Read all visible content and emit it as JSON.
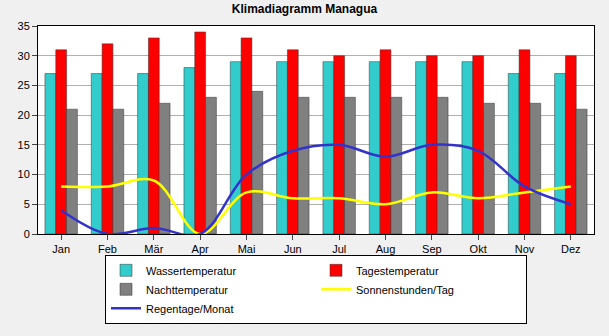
{
  "chart_data": {
    "type": "bar",
    "title": "Klimadiagramm Managua",
    "categories": [
      "Jan",
      "Feb",
      "Mär",
      "Apr",
      "Mai",
      "Jun",
      "Jul",
      "Aug",
      "Sep",
      "Okt",
      "Nov",
      "Dez"
    ],
    "series": [
      {
        "name": "Wassertemperatur",
        "type": "bar",
        "color": "#33cccc",
        "values": [
          27,
          27,
          27,
          28,
          29,
          29,
          29,
          29,
          29,
          29,
          27,
          27
        ]
      },
      {
        "name": "Tagestemperatur",
        "type": "bar",
        "color": "#ff0000",
        "values": [
          31,
          32,
          33,
          34,
          33,
          31,
          30,
          31,
          30,
          30,
          31,
          30
        ]
      },
      {
        "name": "Nachttemperatur",
        "type": "bar",
        "color": "#808080",
        "values": [
          21,
          21,
          22,
          23,
          24,
          23,
          23,
          23,
          23,
          22,
          22,
          21
        ]
      },
      {
        "name": "Sonnenstunden/Tag",
        "type": "line",
        "color": "#ffff00",
        "line_style": "smooth",
        "values": [
          8,
          8,
          9,
          0,
          7,
          6,
          6,
          5,
          7,
          6,
          7,
          8
        ]
      },
      {
        "name": "Regentage/Monat",
        "type": "line",
        "color": "#3333cc",
        "line_style": "smooth",
        "values": [
          4,
          0,
          1,
          0,
          10,
          14,
          15,
          13,
          15,
          14,
          8,
          5
        ]
      }
    ],
    "ylim": [
      0,
      35
    ],
    "yticks": [
      0,
      5,
      10,
      15,
      20,
      25,
      30,
      35
    ],
    "grid": true,
    "legend": "bottom"
  }
}
